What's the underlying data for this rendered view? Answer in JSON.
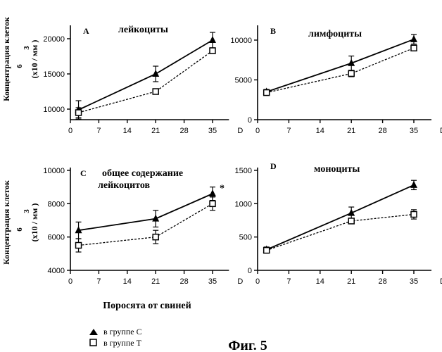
{
  "figure": {
    "caption": "Фиг. 5",
    "xlabel_common": "Поросята от свиней",
    "ylabel_lines": [
      "Концентрация клеток",
      "6",
      "3",
      "(x10  / мм )"
    ],
    "legend": [
      {
        "marker": "triangle-filled",
        "label": "в группе С"
      },
      {
        "marker": "square-open",
        "label": "в группе Т"
      }
    ]
  },
  "chart_data": [
    {
      "type": "line",
      "panel_letter": "A",
      "title": "лейкоциты",
      "xlabel": "D",
      "x_ticks": [
        0,
        7,
        14,
        21,
        28,
        35
      ],
      "xlim": [
        0,
        38
      ],
      "y_ticks": [
        10000,
        15000,
        20000
      ],
      "ylim": [
        8500,
        21500
      ],
      "x": [
        2,
        21,
        35
      ],
      "series": [
        {
          "name": "в группе С",
          "marker": "triangle",
          "dash": false,
          "values": [
            9900,
            15000,
            19800
          ],
          "err": [
            1300,
            1100,
            1100
          ]
        },
        {
          "name": "в группе Т",
          "marker": "square",
          "dash": true,
          "values": [
            9500,
            12500,
            18300
          ],
          "err": [
            700,
            300,
            400
          ]
        }
      ],
      "annotation": ""
    },
    {
      "type": "line",
      "panel_letter": "B",
      "title": "лимфоциты",
      "xlabel": "D",
      "x_ticks": [
        0,
        7,
        14,
        21,
        28,
        35
      ],
      "xlim": [
        0,
        38
      ],
      "y_ticks": [
        0,
        5000,
        10000
      ],
      "ylim": [
        0,
        11500
      ],
      "x": [
        2,
        21,
        35
      ],
      "series": [
        {
          "name": "в группе С",
          "marker": "triangle",
          "dash": false,
          "values": [
            3500,
            7100,
            10100
          ],
          "err": [
            300,
            900,
            600
          ]
        },
        {
          "name": "в группе Т",
          "marker": "square",
          "dash": true,
          "values": [
            3400,
            5800,
            9000
          ],
          "err": [
            300,
            400,
            300
          ]
        }
      ],
      "annotation": ""
    },
    {
      "type": "line",
      "panel_letter": "C",
      "title": "общее содержание",
      "title2": "лейкоцитов",
      "xlabel": "D",
      "x_ticks": [
        0,
        7,
        14,
        21,
        28,
        35
      ],
      "xlim": [
        0,
        38
      ],
      "y_ticks": [
        4000,
        6000,
        8000,
        10000
      ],
      "ylim": [
        4000,
        10000
      ],
      "x": [
        2,
        21,
        35
      ],
      "series": [
        {
          "name": "в группе С",
          "marker": "triangle",
          "dash": false,
          "values": [
            6400,
            7100,
            8600
          ],
          "err": [
            500,
            500,
            400
          ]
        },
        {
          "name": "в группе Т",
          "marker": "square",
          "dash": true,
          "values": [
            5500,
            6000,
            8000
          ],
          "err": [
            400,
            400,
            400
          ]
        }
      ],
      "annotation": "*"
    },
    {
      "type": "line",
      "panel_letter": "D",
      "title": "моноциты",
      "xlabel": "D",
      "x_ticks": [
        0,
        7,
        14,
        21,
        28,
        35
      ],
      "xlim": [
        0,
        38
      ],
      "y_ticks": [
        0,
        500,
        1000,
        1500
      ],
      "ylim": [
        0,
        1500
      ],
      "x": [
        2,
        21,
        35
      ],
      "series": [
        {
          "name": "в группе С",
          "marker": "triangle",
          "dash": false,
          "values": [
            310,
            860,
            1280
          ],
          "err": [
            40,
            90,
            70
          ]
        },
        {
          "name": "в группе Т",
          "marker": "square",
          "dash": true,
          "values": [
            300,
            740,
            840
          ],
          "err": [
            40,
            40,
            70
          ]
        }
      ],
      "annotation": ""
    }
  ]
}
